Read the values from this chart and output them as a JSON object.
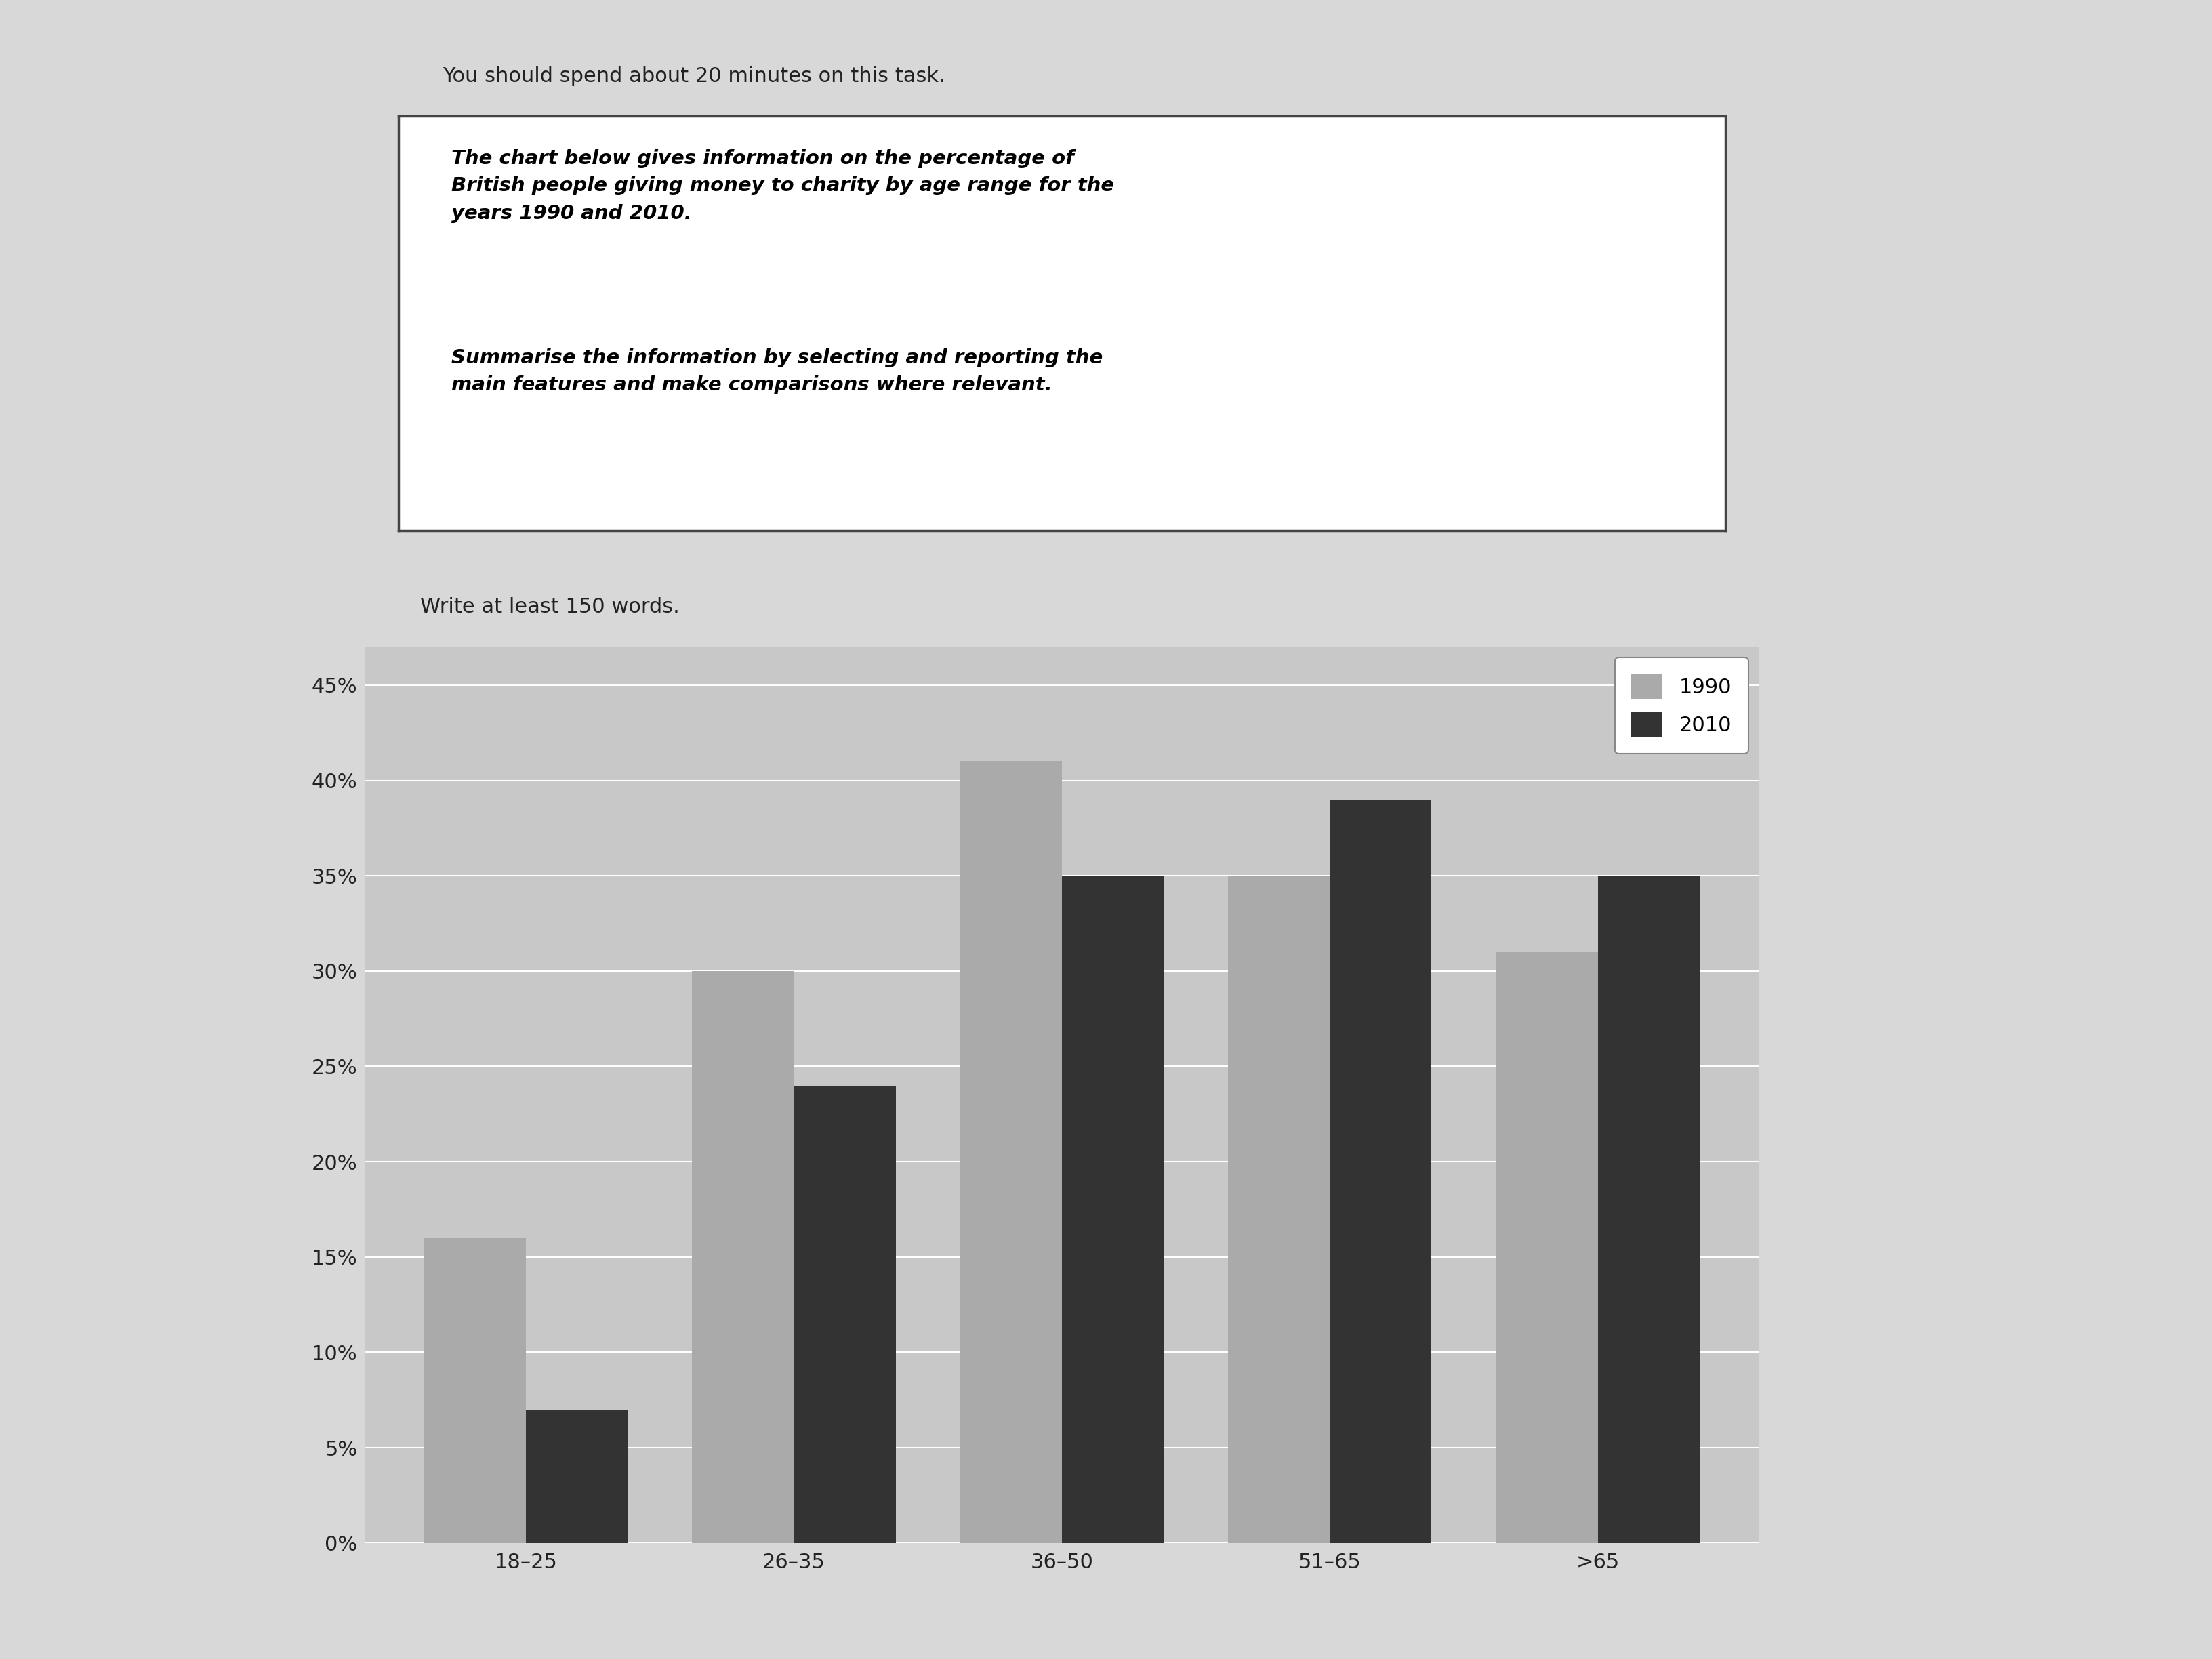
{
  "categories": [
    "18–25",
    "26–35",
    "36–50",
    "51–65",
    ">65"
  ],
  "values_1990": [
    16,
    30,
    41,
    35,
    31
  ],
  "values_2010": [
    7,
    24,
    35,
    39,
    35
  ],
  "color_1990": "#aaaaaa",
  "color_2010": "#333333",
  "yticks": [
    0,
    5,
    10,
    15,
    20,
    25,
    30,
    35,
    40,
    45
  ],
  "ytick_labels": [
    "0%",
    "5%",
    "10%",
    "15%",
    "20%",
    "25%",
    "30%",
    "35%",
    "40%",
    "45%"
  ],
  "legend_labels": [
    "1990",
    "2010"
  ],
  "page_bg": "#d8d8d8",
  "chart_bg": "#c8c8c8",
  "chart_inner_bg": "#d0d0d0",
  "white_area_bg": "#e8e8e8",
  "bar_width": 0.38,
  "prompt_line1": "The chart below gives information on the percentage of",
  "prompt_line2": "British people giving money to charity by age range for the",
  "prompt_line3": "years 1990 and 2010.",
  "prompt_line4": "Summarise the information by selecting and reporting the",
  "prompt_line5": "main features and make comparisons where relevant.",
  "write_text": "Write at least 150 words.",
  "top_text": "You should spend about 20 minutes on this task."
}
